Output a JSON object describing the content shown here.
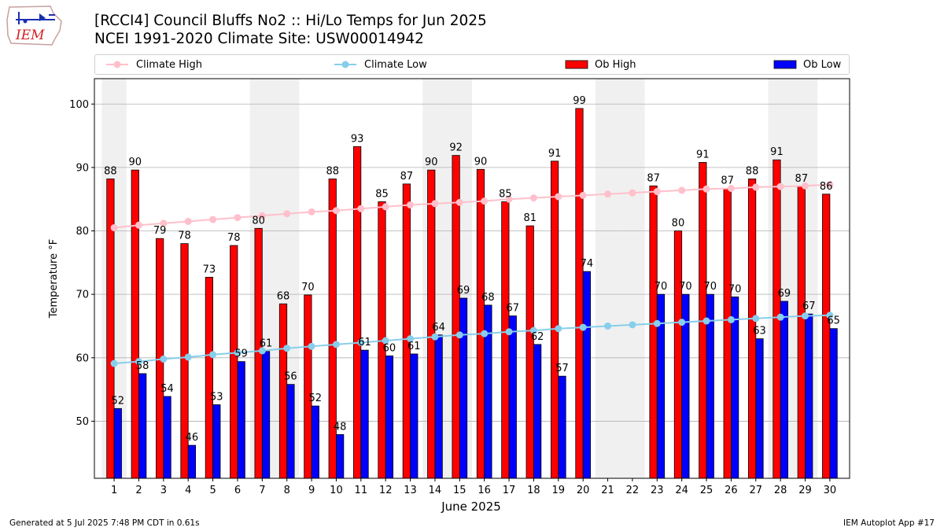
{
  "header": {
    "title_line1": "[RCCI4] Council Bluffs No2 :: Hi/Lo Temps for Jun 2025",
    "title_line2": "NCEI 1991-2020 Climate Site: USW00014942",
    "logo_text": "IEM"
  },
  "footer": {
    "left": "Generated at 5 Jul 2025 7:48 PM CDT in 0.61s",
    "right": "IEM Autoplot App #17"
  },
  "colors": {
    "ob_high": "#ff0000",
    "ob_low": "#0000ff",
    "climate_high": "#ffc0cb",
    "climate_low": "#87ceeb",
    "weekend_shade": "#f0f0f0",
    "grid": "#b0b0b0"
  },
  "chart_data": {
    "type": "bar",
    "xlabel": "June 2025",
    "ylabel": "Temperature °F",
    "ylim": [
      41,
      104
    ],
    "yticks": [
      50,
      60,
      70,
      80,
      90,
      100
    ],
    "grid": "horizontal",
    "legend_position": "top",
    "categories": [
      "1",
      "2",
      "3",
      "4",
      "5",
      "6",
      "7",
      "8",
      "9",
      "10",
      "11",
      "12",
      "13",
      "14",
      "15",
      "16",
      "17",
      "18",
      "19",
      "20",
      "21",
      "22",
      "23",
      "24",
      "25",
      "26",
      "27",
      "28",
      "29",
      "30"
    ],
    "shaded_days": [
      1,
      7,
      8,
      14,
      15,
      21,
      22,
      28,
      29
    ],
    "series": [
      {
        "name": "Ob High",
        "type": "bar",
        "values": [
          88.2,
          89.6,
          78.8,
          78.0,
          72.7,
          77.7,
          80.4,
          68.5,
          69.9,
          88.2,
          93.3,
          84.6,
          87.4,
          89.6,
          91.9,
          89.7,
          84.6,
          80.8,
          91.0,
          99.3,
          null,
          null,
          87.1,
          80.0,
          90.8,
          86.7,
          88.2,
          91.2,
          87.0,
          85.8
        ],
        "labels": [
          "88",
          "90",
          "79",
          "78",
          "73",
          "78",
          "80",
          "68",
          "70",
          "88",
          "93",
          "85",
          "87",
          "90",
          "92",
          "90",
          "85",
          "81",
          "91",
          "99",
          "",
          "",
          "87",
          "80",
          "91",
          "87",
          "88",
          "91",
          "87",
          "86"
        ]
      },
      {
        "name": "Ob Low",
        "type": "bar",
        "values": [
          52.0,
          57.5,
          53.9,
          46.2,
          52.6,
          59.4,
          61.0,
          55.8,
          52.4,
          47.9,
          61.2,
          60.3,
          60.6,
          63.6,
          69.4,
          68.3,
          66.6,
          62.1,
          57.1,
          73.6,
          null,
          null,
          70.0,
          70.0,
          70.0,
          69.6,
          63.0,
          68.9,
          66.9,
          64.6
        ],
        "labels": [
          "52",
          "58",
          "54",
          "46",
          "53",
          "59",
          "61",
          "56",
          "52",
          "48",
          "61",
          "60",
          "61",
          "64",
          "69",
          "68",
          "67",
          "62",
          "57",
          "74",
          "",
          "",
          "70",
          "70",
          "70",
          "70",
          "63",
          "69",
          "67",
          "65"
        ]
      },
      {
        "name": "Climate High",
        "type": "line",
        "values": [
          80.5,
          80.9,
          81.2,
          81.5,
          81.8,
          82.1,
          82.4,
          82.7,
          83.0,
          83.2,
          83.5,
          83.8,
          84.1,
          84.3,
          84.5,
          84.7,
          85.0,
          85.2,
          85.4,
          85.6,
          85.8,
          86.0,
          86.2,
          86.4,
          86.6,
          86.7,
          86.9,
          87.0,
          87.1,
          87.3
        ]
      },
      {
        "name": "Climate Low",
        "type": "line",
        "values": [
          59.1,
          59.4,
          59.8,
          60.1,
          60.5,
          60.8,
          61.1,
          61.5,
          61.8,
          62.1,
          62.4,
          62.7,
          63.0,
          63.3,
          63.6,
          63.8,
          64.1,
          64.3,
          64.6,
          64.8,
          65.0,
          65.2,
          65.4,
          65.6,
          65.8,
          66.0,
          66.2,
          66.4,
          66.6,
          66.7
        ]
      }
    ]
  }
}
